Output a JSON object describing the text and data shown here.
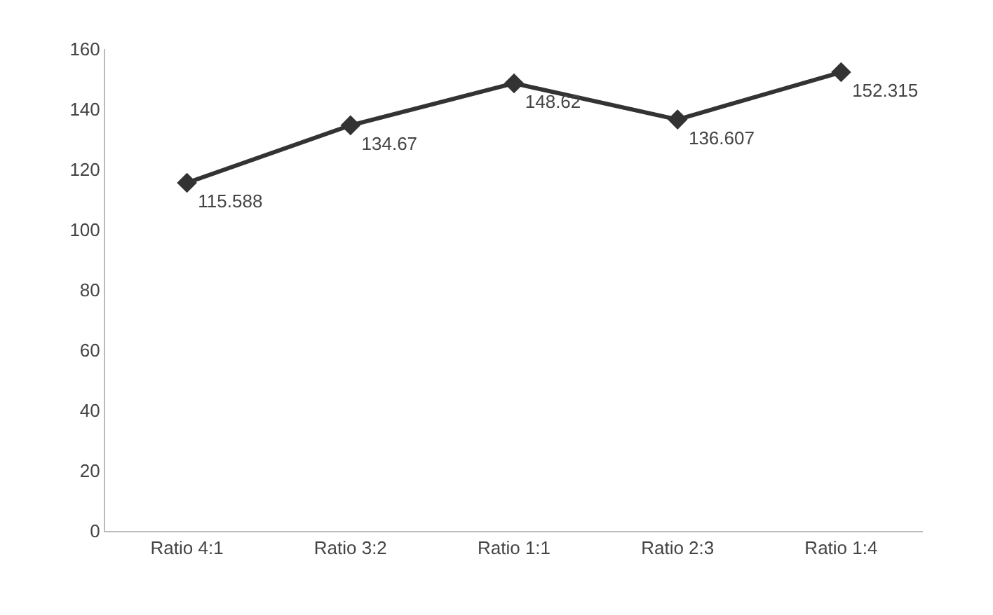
{
  "chart_data": {
    "type": "line",
    "categories": [
      "Ratio 4:1",
      "Ratio 3:2",
      "Ratio 1:1",
      "Ratio 2:3",
      "Ratio 1:4"
    ],
    "series": [
      {
        "color": "#333333",
        "values": [
          115.588,
          134.67,
          148.62,
          136.607,
          152.315
        ]
      }
    ],
    "data_labels": true,
    "marker": "diamond",
    "line_style": "solid",
    "ylim": [
      0,
      160
    ],
    "yticks": [
      0,
      20,
      40,
      60,
      80,
      100,
      120,
      140,
      160
    ]
  }
}
